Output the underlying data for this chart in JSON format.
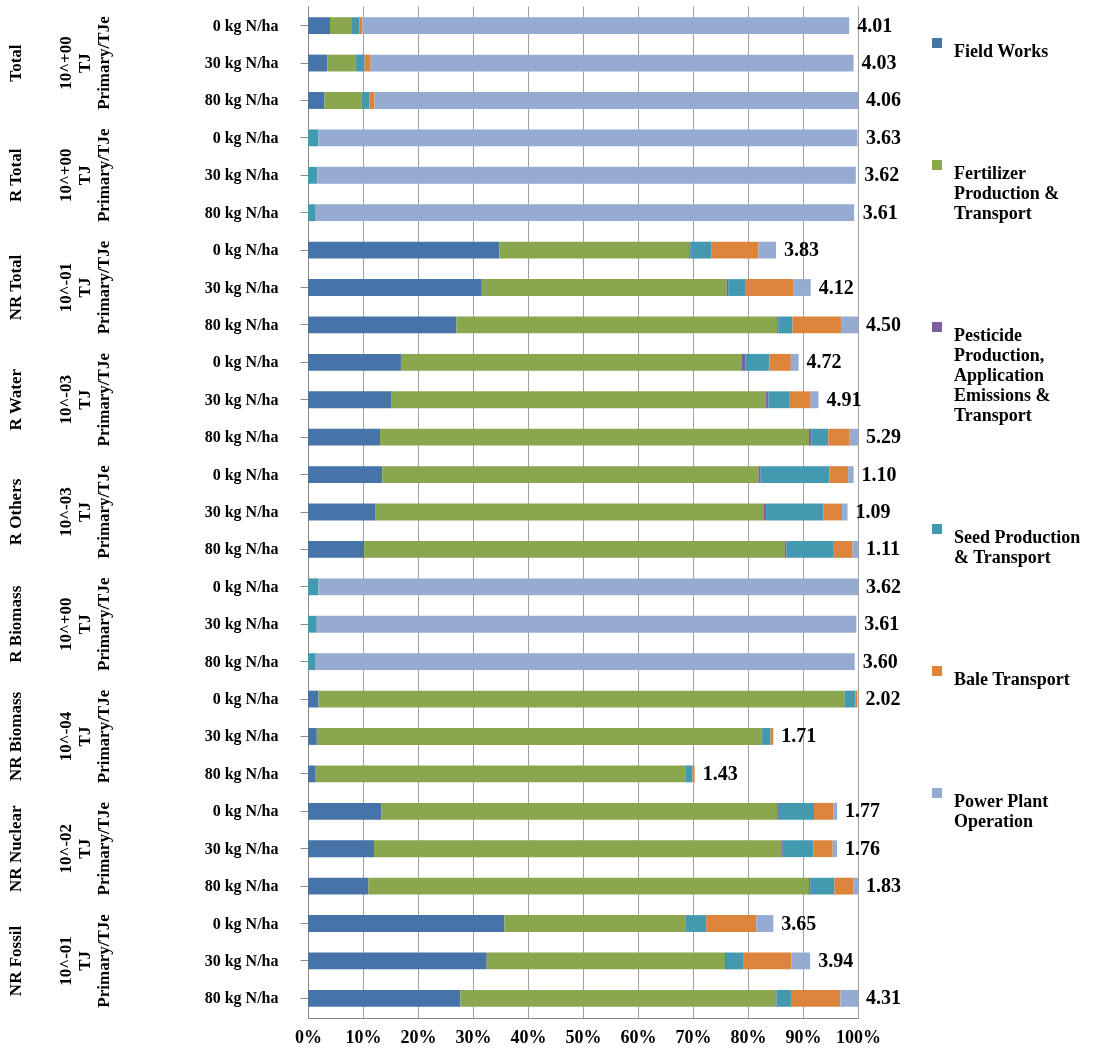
{
  "chart_data": {
    "type": "bar",
    "orientation": "horizontal",
    "stacked": true,
    "categories": [
      "0 kg N/ha",
      "30 kg N/ha",
      "80 kg N/ha",
      "0 kg N/ha",
      "30 kg N/ha",
      "80 kg N/ha",
      "0 kg N/ha",
      "30 kg N/ha",
      "80 kg N/ha",
      "0 kg N/ha",
      "30 kg N/ha",
      "80 kg N/ha",
      "0 kg N/ha",
      "30 kg N/ha",
      "80 kg N/ha",
      "0 kg N/ha",
      "30 kg N/ha",
      "80 kg N/ha",
      "0 kg N/ha",
      "30 kg N/ha",
      "80 kg N/ha",
      "0 kg N/ha",
      "30 kg N/ha",
      "80 kg N/ha",
      "0 kg N/ha",
      "30 kg N/ha",
      "80 kg N/ha"
    ],
    "series": [
      {
        "name": "Field Works",
        "color": "#4673a8",
        "values": [
          4.0,
          3.5,
          3.0,
          0,
          0,
          0,
          34.8,
          31.6,
          27.0,
          16.9,
          15.1,
          13.1,
          13.5,
          12.2,
          10.2,
          0,
          0,
          0,
          1.9,
          1.6,
          1.4,
          13.3,
          12.0,
          11.0,
          35.7,
          32.5,
          27.7
        ]
      },
      {
        "name": "Fertilizer Production & Transport",
        "color": "#8aa64f",
        "values": [
          4.0,
          5.2,
          6.8,
          null,
          null,
          null,
          34.5,
          44.5,
          58.3,
          62.0,
          68.2,
          78.0,
          68.4,
          70.7,
          76.5,
          0,
          0,
          0,
          95.7,
          80.9,
          67.2,
          72.0,
          74.2,
          80.1,
          32.9,
          43.3,
          57.4
        ]
      },
      {
        "name": "Pesticide Production, Application Emissions & Transport",
        "color": "#7b5fa0",
        "values": [
          0,
          0,
          0,
          0,
          0,
          0,
          0.2,
          0.3,
          0.2,
          0.6,
          0.4,
          0.4,
          0.4,
          0.4,
          0.3,
          0,
          0,
          0,
          0,
          0,
          0,
          0.3,
          0.3,
          0.2,
          0.1,
          0.2,
          0.1
        ]
      },
      {
        "name": "Seed Production & Transport",
        "color": "#4299b0",
        "values": [
          1.3,
          1.6,
          1.4,
          1.9,
          1.7,
          1.4,
          3.8,
          3.2,
          2.6,
          4.4,
          3.9,
          3.1,
          12.5,
          10.4,
          8.6,
          1.9,
          1.6,
          1.4,
          1.9,
          1.6,
          1.3,
          6.4,
          5.4,
          4.4,
          3.7,
          3.1,
          2.6
        ]
      },
      {
        "name": "Bale Transport",
        "color": "#dd843c",
        "values": [
          0.6,
          1.1,
          0.9,
          0,
          0,
          0,
          8.6,
          8.6,
          8.8,
          3.9,
          3.8,
          3.9,
          3.4,
          3.4,
          3.4,
          0,
          0,
          0,
          0.4,
          0.5,
          0.4,
          3.5,
          3.5,
          3.5,
          9.1,
          8.8,
          9.0
        ]
      },
      {
        "name": "Power Plant Operation",
        "color": "#95abd2",
        "values": [
          88.5,
          87.8,
          87.9,
          98.0,
          97.9,
          97.9,
          3.2,
          3.2,
          3.1,
          1.4,
          1.4,
          1.5,
          1.0,
          1.0,
          1.0,
          98.1,
          98.1,
          98.0,
          0,
          0,
          0,
          0.7,
          0.8,
          0.8,
          3.1,
          3.4,
          3.2
        ]
      }
    ],
    "annotations": [
      "Total",
      "10^+00 TJ Primary/TJe",
      "R Total",
      "10^+00 TJ Primary/TJe",
      "NR Total",
      "10^-01 TJ Primary/TJe",
      "R Water",
      "10^-03 TJ Primary/TJe",
      "R Others",
      "10^-03 TJ Primary/TJe",
      "R Biomass",
      "10^+00 TJ Primary/TJe",
      "NR Biomass",
      "10^-04 TJ Primary/TJe",
      "NR Nuclear",
      "10^-02 TJ Primary/TJe",
      "NR Fossil",
      "10^-01 TJ Primary/TJe",
      {
        "text": "4.01",
        "x": 98.4
      },
      {
        "text": "4.03",
        "x": 99.2
      },
      {
        "text": "4.06",
        "x": 100
      },
      {
        "text": "3.63",
        "x": 100
      },
      {
        "text": "3.62",
        "x": 99.7
      },
      {
        "text": "3.61",
        "x": 99.4
      },
      {
        "text": "3.83",
        "x": 85.1
      },
      {
        "text": "4.12",
        "x": 91.4
      },
      {
        "text": "4.50",
        "x": 100
      },
      {
        "text": "4.72",
        "x": 89.2
      },
      {
        "text": "4.91",
        "x": 92.8
      },
      {
        "text": "5.29",
        "x": 100
      },
      {
        "text": "1.10",
        "x": 99.2
      },
      {
        "text": "1.09",
        "x": 98.1
      },
      {
        "text": "1.11",
        "x": 100
      },
      {
        "text": "3.62",
        "x": 100
      },
      {
        "text": "3.61",
        "x": 99.7
      },
      {
        "text": "3.60",
        "x": 99.4
      },
      {
        "text": "2.02",
        "x": 99.9
      },
      {
        "text": "1.71",
        "x": 84.6
      },
      {
        "text": "1.43",
        "x": 70.3
      },
      {
        "text": "1.77",
        "x": 96.2
      },
      {
        "text": "1.76",
        "x": 96.2
      },
      {
        "text": "1.83",
        "x": 100
      },
      {
        "text": "3.65",
        "x": 84.6
      },
      {
        "text": "3.94",
        "x": 91.3
      },
      {
        "text": "4.31",
        "x": 100
      }
    ],
    "xlim": [
      0,
      100
    ],
    "xticks": [
      {
        "value": 0,
        "label": "0%"
      },
      {
        "value": 10,
        "label": "10%"
      },
      {
        "value": 20,
        "label": "20%"
      },
      {
        "value": 30,
        "label": "30%"
      },
      {
        "value": 40,
        "label": "40%"
      },
      {
        "value": 50,
        "label": "50%"
      },
      {
        "value": 60,
        "label": "60%"
      },
      {
        "value": 70,
        "label": "70%"
      },
      {
        "value": 80,
        "label": "80%"
      },
      {
        "value": 90,
        "label": "90%"
      },
      {
        "value": 100,
        "label": "100%"
      }
    ],
    "grid": "x",
    "legend": "right"
  }
}
